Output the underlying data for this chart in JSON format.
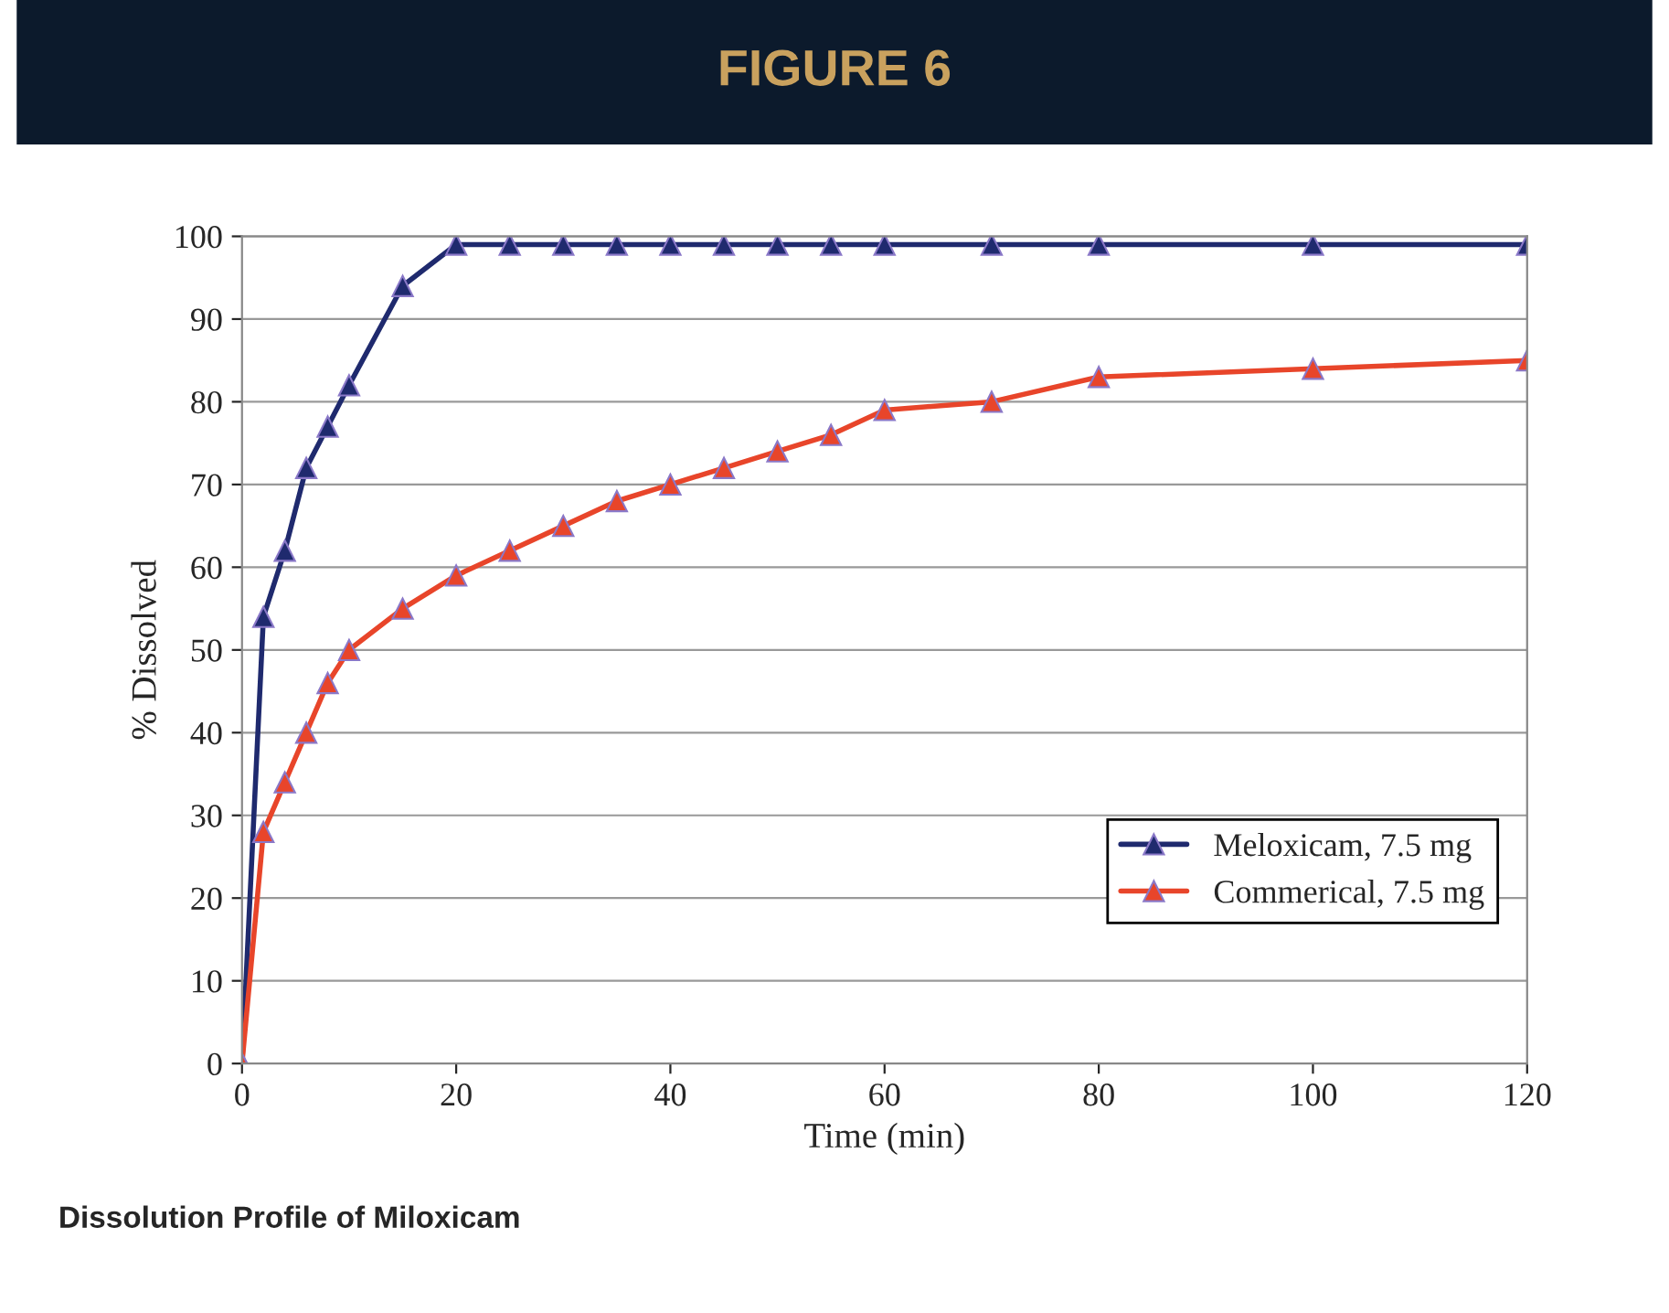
{
  "chart_data": {
    "type": "line",
    "title": "FIGURE 6",
    "xlabel": "Time (min)",
    "ylabel": "% Dissolved",
    "annotations": [
      "Dissolution Profile of Miloxicam"
    ],
    "x": [
      0,
      2,
      4,
      6,
      8,
      10,
      15,
      20,
      25,
      30,
      35,
      40,
      45,
      50,
      55,
      60,
      70,
      80,
      100,
      120
    ],
    "series": [
      {
        "name": "Meloxicam, 7.5 mg",
        "color": "#1f2a6e",
        "values": [
          0,
          54,
          62,
          72,
          77,
          82,
          94,
          99,
          99,
          99,
          99,
          99,
          99,
          99,
          99,
          99,
          99,
          99,
          99,
          99
        ]
      },
      {
        "name": "Commerical, 7.5 mg",
        "color": "#e8452a",
        "values": [
          0,
          28,
          34,
          40,
          46,
          50,
          55,
          59,
          62,
          65,
          68,
          70,
          72,
          74,
          76,
          79,
          80,
          83,
          84,
          85
        ]
      }
    ],
    "xlim": [
      0,
      120
    ],
    "xticks": [
      0,
      20,
      40,
      60,
      80,
      100,
      120
    ],
    "ylim": [
      0,
      100
    ],
    "yticks": [
      0,
      10,
      20,
      30,
      40,
      50,
      60,
      70,
      80,
      90,
      100
    ],
    "grid": "y",
    "legend": "bottom right",
    "marker": "triangle",
    "line_style": "solid"
  }
}
